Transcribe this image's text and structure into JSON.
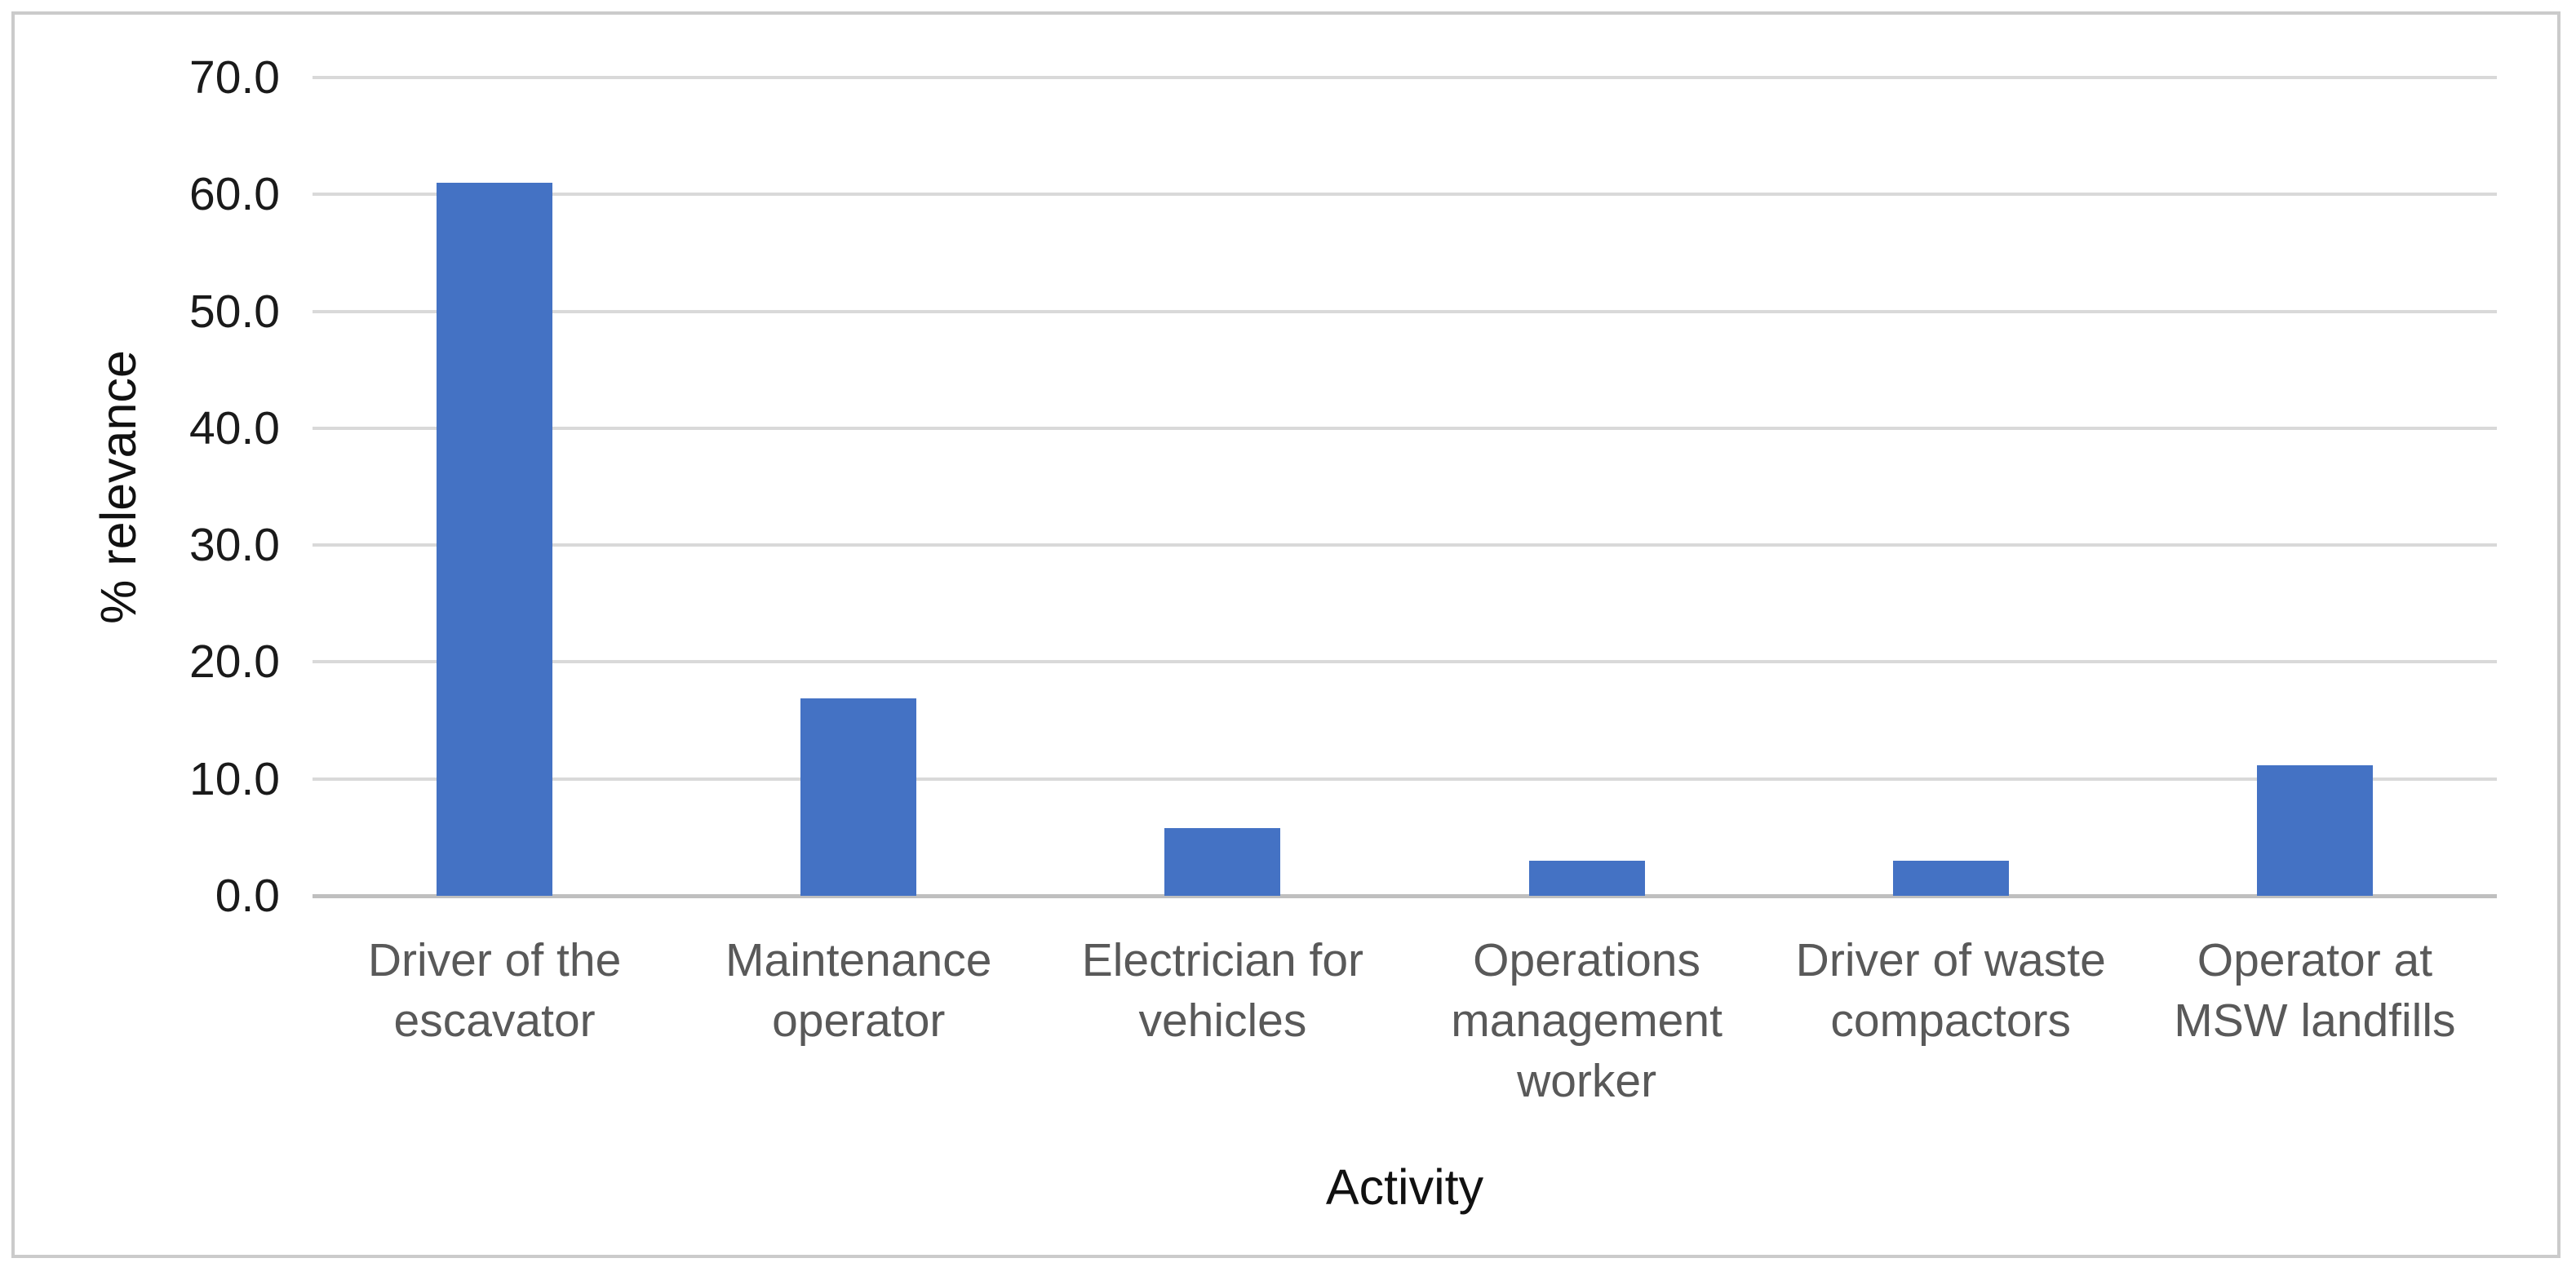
{
  "chart_data": {
    "type": "bar",
    "categories": [
      "Driver of the escavator",
      "Maintenance operator",
      "Electrician for vehicles",
      "Operations management worker",
      "Driver of waste compactors",
      "Operator at MSW landfills"
    ],
    "categories_wrapped": [
      "Driver of the\nescavator",
      "Maintenance\noperator",
      "Electrician for\nvehicles",
      "Operations\nmanagement\nworker",
      "Driver of waste\ncompactors",
      "Operator at\nMSW landfills"
    ],
    "values": [
      61.0,
      16.9,
      5.8,
      3.0,
      3.0,
      11.2
    ],
    "title": "",
    "xlabel": "Activity",
    "ylabel": "% relevance",
    "ylim": [
      0,
      70
    ],
    "ytick_labels": [
      "0.0",
      "10.0",
      "20.0",
      "30.0",
      "40.0",
      "50.0",
      "60.0",
      "70.0"
    ],
    "ytick_values": [
      0,
      10,
      20,
      30,
      40,
      50,
      60,
      70
    ],
    "grid": "horizontal",
    "legend_position": "none"
  },
  "colors": {
    "bar": "#4472C4",
    "gridline": "#D9D9D9",
    "axis_line": "#BFBFBF",
    "tick_label": "#1A1A1A",
    "category_label": "#595959",
    "axis_title": "#111111",
    "frame_border": "#CBCBCB",
    "background": "#FFFFFF"
  }
}
